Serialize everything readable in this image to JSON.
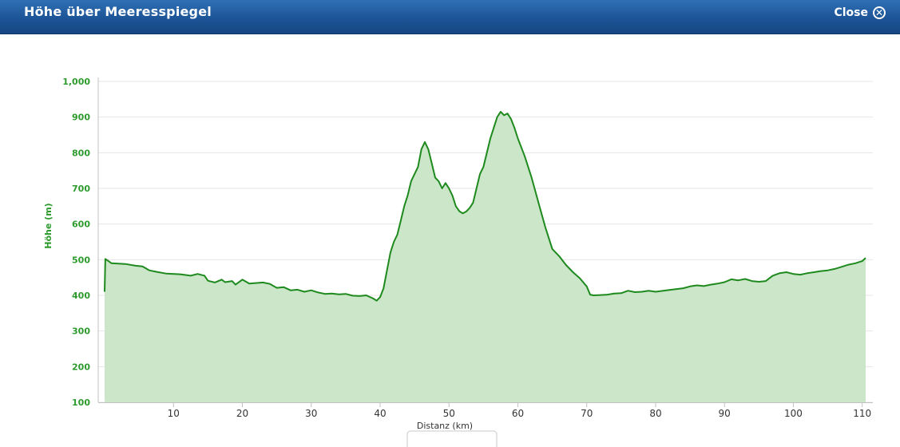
{
  "window": {
    "title": "Höhe über Meeresspiegel",
    "close_label": "Close",
    "close_icon": "close-circle-icon",
    "header_color": "#1d5597"
  },
  "chart_data": {
    "type": "area",
    "title": "",
    "xlabel": "Distanz (km)",
    "ylabel": "Höhe (m)",
    "xlim": [
      0,
      111
    ],
    "ylim": [
      100,
      1000
    ],
    "y_ticks": [
      100,
      200,
      300,
      400,
      500,
      600,
      700,
      800,
      900,
      1000
    ],
    "y_tick_labels": [
      "100",
      "200",
      "300",
      "400",
      "500",
      "600",
      "700",
      "800",
      "900",
      "1,000"
    ],
    "x_ticks": [
      10,
      20,
      30,
      40,
      50,
      60,
      70,
      80,
      90,
      100,
      110
    ],
    "x_tick_labels": [
      "10",
      "20",
      "30",
      "40",
      "50",
      "60",
      "70",
      "80",
      "90",
      "100",
      "110"
    ],
    "grid": true,
    "line_color": "#1e8a1e",
    "fill_color": "#cbe6c8",
    "label_color": "#2c9a2c",
    "series": [
      {
        "values": [
          [
            0,
            410
          ],
          [
            0.1,
            502
          ],
          [
            0.5,
            497
          ],
          [
            1,
            490
          ],
          [
            3,
            488
          ],
          [
            4.5,
            483
          ],
          [
            5.5,
            481
          ],
          [
            6.5,
            470
          ],
          [
            7.5,
            466
          ],
          [
            9,
            461
          ],
          [
            11,
            459
          ],
          [
            12.5,
            455
          ],
          [
            13.5,
            460
          ],
          [
            14.5,
            455
          ],
          [
            15,
            441
          ],
          [
            16,
            436
          ],
          [
            17,
            444
          ],
          [
            17.5,
            437
          ],
          [
            18.5,
            440
          ],
          [
            19,
            430
          ],
          [
            20,
            444
          ],
          [
            21,
            433
          ],
          [
            23,
            436
          ],
          [
            24,
            432
          ],
          [
            25,
            421
          ],
          [
            26,
            423
          ],
          [
            27,
            414
          ],
          [
            28,
            416
          ],
          [
            29,
            410
          ],
          [
            30,
            414
          ],
          [
            31,
            408
          ],
          [
            32,
            404
          ],
          [
            33,
            405
          ],
          [
            34,
            403
          ],
          [
            35,
            404
          ],
          [
            36,
            399
          ],
          [
            37,
            398
          ],
          [
            38,
            400
          ],
          [
            39,
            391
          ],
          [
            39.5,
            385
          ],
          [
            40,
            395
          ],
          [
            40.5,
            420
          ],
          [
            41,
            470
          ],
          [
            41.5,
            520
          ],
          [
            42,
            550
          ],
          [
            42.5,
            570
          ],
          [
            43,
            610
          ],
          [
            43.5,
            650
          ],
          [
            44,
            680
          ],
          [
            44.5,
            720
          ],
          [
            45,
            740
          ],
          [
            45.5,
            760
          ],
          [
            46,
            810
          ],
          [
            46.5,
            830
          ],
          [
            47,
            810
          ],
          [
            47.5,
            770
          ],
          [
            48,
            730
          ],
          [
            48.5,
            720
          ],
          [
            49,
            700
          ],
          [
            49.5,
            715
          ],
          [
            50,
            700
          ],
          [
            50.5,
            680
          ],
          [
            51,
            650
          ],
          [
            51.5,
            636
          ],
          [
            52,
            630
          ],
          [
            52.5,
            635
          ],
          [
            53,
            645
          ],
          [
            53.5,
            660
          ],
          [
            54,
            700
          ],
          [
            54.5,
            740
          ],
          [
            55,
            760
          ],
          [
            55.5,
            800
          ],
          [
            56,
            840
          ],
          [
            56.5,
            870
          ],
          [
            57,
            900
          ],
          [
            57.5,
            915
          ],
          [
            58,
            905
          ],
          [
            58.5,
            910
          ],
          [
            59,
            895
          ],
          [
            59.5,
            870
          ],
          [
            60,
            840
          ],
          [
            61,
            790
          ],
          [
            62,
            730
          ],
          [
            63,
            660
          ],
          [
            64,
            590
          ],
          [
            65,
            530
          ],
          [
            66,
            510
          ],
          [
            67,
            485
          ],
          [
            68,
            465
          ],
          [
            69,
            448
          ],
          [
            70,
            425
          ],
          [
            70.5,
            402
          ],
          [
            71,
            400
          ],
          [
            72,
            401
          ],
          [
            73,
            402
          ],
          [
            74,
            405
          ],
          [
            75,
            406
          ],
          [
            76,
            413
          ],
          [
            77,
            409
          ],
          [
            78,
            410
          ],
          [
            79,
            413
          ],
          [
            80,
            410
          ],
          [
            82,
            415
          ],
          [
            84,
            420
          ],
          [
            85,
            425
          ],
          [
            86,
            428
          ],
          [
            87,
            426
          ],
          [
            88,
            430
          ],
          [
            89,
            433
          ],
          [
            90,
            437
          ],
          [
            91,
            445
          ],
          [
            92,
            442
          ],
          [
            93,
            446
          ],
          [
            94,
            440
          ],
          [
            95,
            438
          ],
          [
            96,
            440
          ],
          [
            97,
            455
          ],
          [
            98,
            462
          ],
          [
            99,
            465
          ],
          [
            100,
            460
          ],
          [
            101,
            458
          ],
          [
            102,
            462
          ],
          [
            103,
            465
          ],
          [
            104,
            468
          ],
          [
            105,
            470
          ],
          [
            106,
            474
          ],
          [
            107,
            480
          ],
          [
            108,
            486
          ],
          [
            109,
            490
          ],
          [
            110,
            496
          ],
          [
            110.5,
            505
          ]
        ]
      }
    ]
  }
}
